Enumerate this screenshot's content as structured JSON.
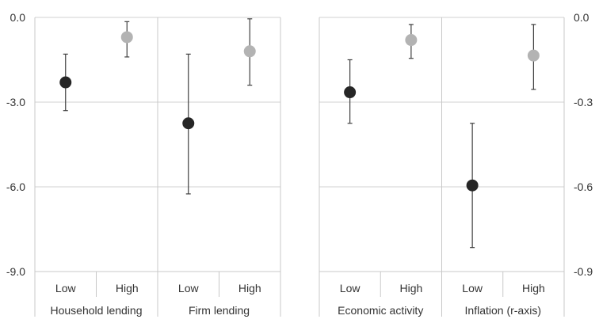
{
  "chart_data": [
    {
      "type": "scatter",
      "subtype": "point-with-error-bars",
      "axis": "left",
      "ylim": [
        -9.0,
        0.0
      ],
      "yticks": [
        "0.0",
        "-3.0",
        "-6.0",
        "-9.0"
      ],
      "grid": true,
      "groups": [
        {
          "label": "Household lending",
          "points": [
            {
              "x": "Low",
              "value": -2.3,
              "lower": -3.3,
              "upper": -1.3,
              "color": "#262626"
            },
            {
              "x": "High",
              "value": -0.7,
              "lower": -1.4,
              "upper": -0.15,
              "color": "#b3b3b3"
            }
          ]
        },
        {
          "label": "Firm lending",
          "points": [
            {
              "x": "Low",
              "value": -3.75,
              "lower": -6.25,
              "upper": -1.3,
              "color": "#262626"
            },
            {
              "x": "High",
              "value": -1.2,
              "lower": -2.4,
              "upper": -0.05,
              "color": "#b3b3b3"
            }
          ]
        }
      ]
    },
    {
      "type": "scatter",
      "subtype": "point-with-error-bars",
      "axis": "right",
      "ylim": [
        -0.9,
        0.0
      ],
      "yticks": [
        "0.0",
        "-0.3",
        "-0.6",
        "-0.9"
      ],
      "grid": true,
      "groups": [
        {
          "label": "Economic activity",
          "points": [
            {
              "x": "Low",
              "value": -0.265,
              "lower": -0.375,
              "upper": -0.15,
              "color": "#262626"
            },
            {
              "x": "High",
              "value": -0.08,
              "lower": -0.145,
              "upper": -0.025,
              "color": "#b3b3b3"
            }
          ]
        },
        {
          "label": "Inflation (r-axis)",
          "points": [
            {
              "x": "Low",
              "value": -0.595,
              "lower": -0.815,
              "upper": -0.375,
              "color": "#262626"
            },
            {
              "x": "High",
              "value": -0.135,
              "lower": -0.255,
              "upper": -0.025,
              "color": "#b3b3b3"
            }
          ]
        }
      ]
    }
  ]
}
